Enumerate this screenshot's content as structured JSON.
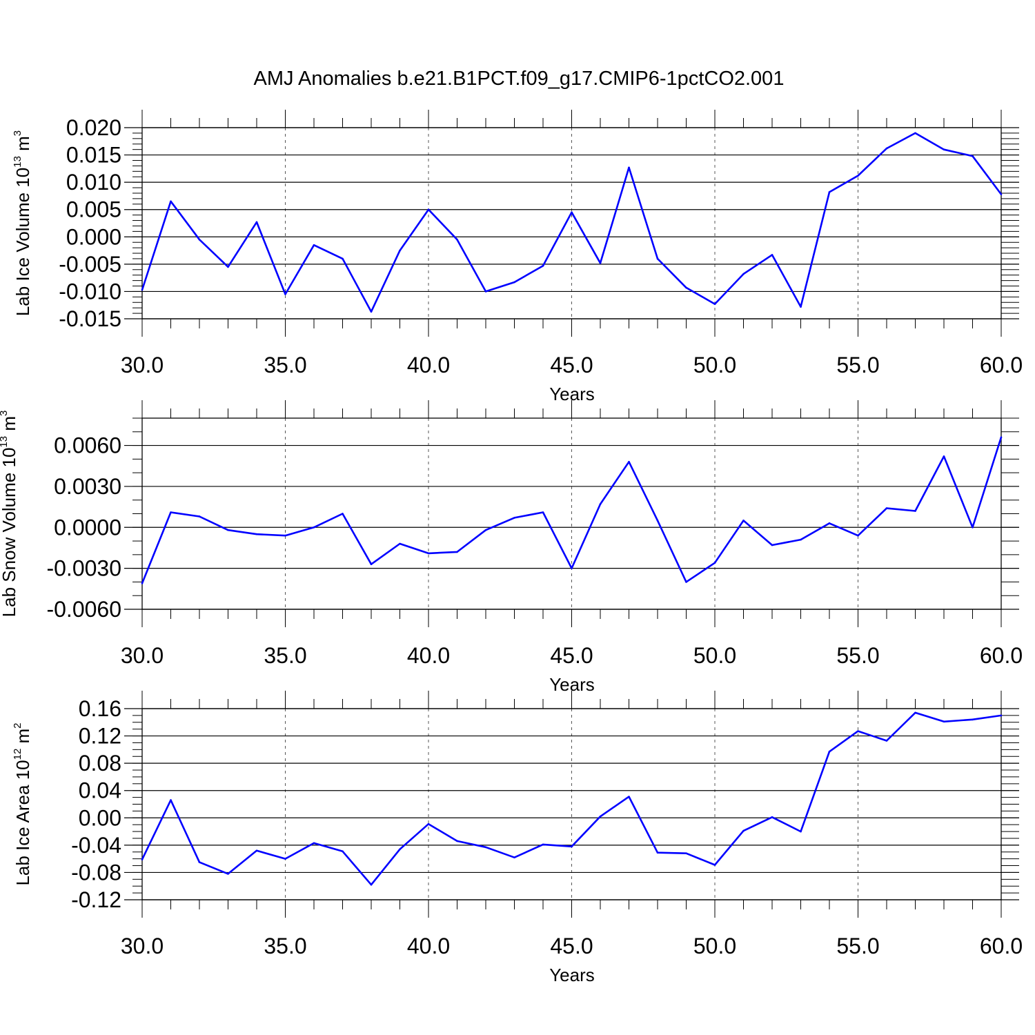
{
  "figure": {
    "title": "AMJ Anomalies b.e21.B1PCT.f09_g17.CMIP6-1pctCO2.001"
  },
  "colors": {
    "series": "#0000ff"
  },
  "chart_data": [
    {
      "type": "line",
      "ylabel": {
        "text": "Lab Ice Volume 10",
        "sup": "13",
        "unit": " m",
        "unit_sup": "3"
      },
      "xlabel": "Years",
      "xlim": [
        30,
        60
      ],
      "ylim": [
        -0.015,
        0.02
      ],
      "ylim_visible": [
        -0.015,
        0.02
      ],
      "xticks": [
        "30.0",
        "35.0",
        "40.0",
        "45.0",
        "50.0",
        "55.0",
        "60.0"
      ],
      "yticks": [
        {
          "v": -0.015,
          "label": "-0.015"
        },
        {
          "v": -0.01,
          "label": "-0.010"
        },
        {
          "v": -0.005,
          "label": "-0.005"
        },
        {
          "v": 0.0,
          "label": "0.000"
        },
        {
          "v": 0.005,
          "label": "0.005"
        },
        {
          "v": 0.01,
          "label": "0.010"
        },
        {
          "v": 0.015,
          "label": "0.015"
        },
        {
          "v": 0.02,
          "label": "0.020"
        }
      ],
      "yminor": 0.001,
      "grid": "x-dashed",
      "x": [
        30,
        31,
        32,
        33,
        34,
        35,
        36,
        37,
        38,
        39,
        40,
        41,
        42,
        43,
        44,
        45,
        46,
        47,
        48,
        49,
        50,
        51,
        52,
        53,
        54,
        55,
        56,
        57,
        58,
        59,
        60
      ],
      "values": [
        -0.0097,
        0.0065,
        -0.0005,
        -0.0055,
        0.0027,
        -0.0105,
        -0.0015,
        -0.004,
        -0.0137,
        -0.0025,
        0.005,
        -0.0005,
        -0.01,
        -0.0083,
        -0.0053,
        0.0045,
        -0.0048,
        0.0127,
        -0.004,
        -0.0093,
        -0.0123,
        -0.0068,
        -0.0033,
        -0.0128,
        0.0082,
        0.0112,
        0.0162,
        0.019,
        0.016,
        0.0148,
        0.0078
      ]
    },
    {
      "type": "line",
      "ylabel": {
        "text": "Lab Snow Volume 10",
        "sup": "13",
        "unit": " m",
        "unit_sup": "3"
      },
      "xlabel": "Years",
      "xlim": [
        30,
        60
      ],
      "ylim": [
        -0.006,
        0.008
      ],
      "xticks": [
        "30.0",
        "35.0",
        "40.0",
        "45.0",
        "50.0",
        "55.0",
        "60.0"
      ],
      "yticks": [
        {
          "v": -0.006,
          "label": "-0.0060"
        },
        {
          "v": -0.003,
          "label": "-0.0030"
        },
        {
          "v": 0.0,
          "label": "0.0000"
        },
        {
          "v": 0.003,
          "label": "0.0030"
        },
        {
          "v": 0.006,
          "label": "0.0060"
        }
      ],
      "yminor": 0.001,
      "grid": "x-dashed",
      "x": [
        30,
        31,
        32,
        33,
        34,
        35,
        36,
        37,
        38,
        39,
        40,
        41,
        42,
        43,
        44,
        45,
        46,
        47,
        48,
        49,
        50,
        51,
        52,
        53,
        54,
        55,
        56,
        57,
        58,
        59,
        60
      ],
      "values": [
        -0.0041,
        0.0011,
        0.0008,
        -0.0002,
        -0.0005,
        -0.0006,
        0.0,
        0.001,
        -0.0027,
        -0.0012,
        -0.0019,
        -0.0018,
        -0.0002,
        0.0007,
        0.0011,
        -0.003,
        0.0017,
        0.0048,
        0.0005,
        -0.004,
        -0.0026,
        0.0005,
        -0.0013,
        -0.0009,
        0.0003,
        -0.0006,
        0.0014,
        0.0012,
        0.0052,
        0.0,
        0.0066
      ]
    },
    {
      "type": "line",
      "ylabel": {
        "text": "Lab Ice Area 10",
        "sup": "12",
        "unit": " m",
        "unit_sup": "2"
      },
      "xlabel": "Years",
      "xlim": [
        30,
        60
      ],
      "ylim": [
        -0.12,
        0.16
      ],
      "xticks": [
        "30.0",
        "35.0",
        "40.0",
        "45.0",
        "50.0",
        "55.0",
        "60.0"
      ],
      "yticks": [
        {
          "v": -0.12,
          "label": "-0.12"
        },
        {
          "v": -0.08,
          "label": "-0.08"
        },
        {
          "v": -0.04,
          "label": "-0.04"
        },
        {
          "v": 0.0,
          "label": "0.00"
        },
        {
          "v": 0.04,
          "label": "0.04"
        },
        {
          "v": 0.08,
          "label": "0.08"
        },
        {
          "v": 0.12,
          "label": "0.12"
        },
        {
          "v": 0.16,
          "label": "0.16"
        }
      ],
      "yminor": 0.01,
      "grid": "x-dashed",
      "x": [
        30,
        31,
        32,
        33,
        34,
        35,
        36,
        37,
        38,
        39,
        40,
        41,
        42,
        43,
        44,
        45,
        46,
        47,
        48,
        49,
        50,
        51,
        52,
        53,
        54,
        55,
        56,
        57,
        58,
        59,
        60
      ],
      "values": [
        -0.061,
        0.026,
        -0.065,
        -0.082,
        -0.048,
        -0.06,
        -0.037,
        -0.049,
        -0.098,
        -0.046,
        -0.009,
        -0.034,
        -0.043,
        -0.058,
        -0.039,
        -0.042,
        0.002,
        0.031,
        -0.051,
        -0.052,
        -0.069,
        -0.019,
        0.001,
        -0.02,
        0.097,
        0.127,
        0.113,
        0.154,
        0.141,
        0.144,
        0.15
      ]
    }
  ]
}
